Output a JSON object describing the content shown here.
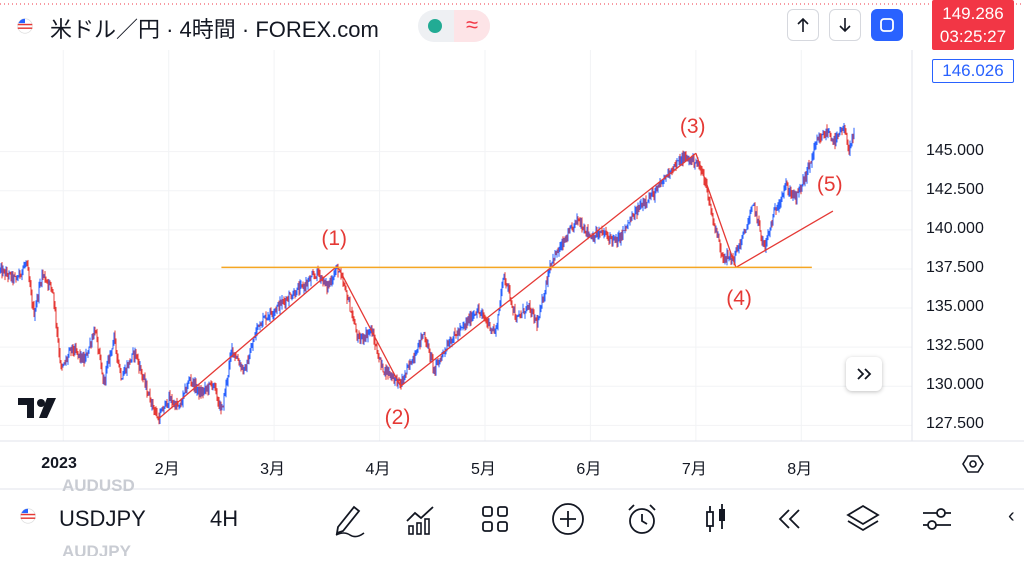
{
  "header": {
    "title": "米ドル／円 · 4時間 · FOREX.com",
    "status_icon": "green-dot",
    "wave_icon": "≈",
    "up_icon": "arrow-up",
    "down_icon": "arrow-down",
    "fullscreen_icon": "expand-square"
  },
  "price_tags": {
    "current_price": "149.286",
    "countdown": "03:25:27",
    "marker_price": "146.026"
  },
  "colors": {
    "bull": "#2962ff",
    "bear": "#e53935",
    "level_line": "#f5a623",
    "price_tag_red": "#f23645",
    "marker_blue": "#2962ff"
  },
  "chart_data": {
    "type": "line",
    "symbol": "USDJPY",
    "ylim": [
      126.5,
      151.5
    ],
    "y_ticks": [
      "145.000",
      "142.500",
      "140.000",
      "137.500",
      "135.000",
      "132.500",
      "130.000",
      "127.500"
    ],
    "y_tick_values": [
      145,
      142.5,
      140,
      137.5,
      135,
      132.5,
      130,
      127.5
    ],
    "x_ticks": [
      "2023",
      "2月",
      "3月",
      "4月",
      "5月",
      "6月",
      "7月",
      "8月"
    ],
    "x_tick_months": [
      0,
      1,
      2,
      3,
      4,
      5,
      6,
      7
    ],
    "xlim_months": [
      -0.6,
      8.05
    ],
    "price_path": [
      {
        "m": -0.6,
        "v": 137.4
      },
      {
        "m": -0.45,
        "v": 136.8
      },
      {
        "m": -0.35,
        "v": 137.9
      },
      {
        "m": -0.28,
        "v": 134.6
      },
      {
        "m": -0.2,
        "v": 137.2
      },
      {
        "m": -0.1,
        "v": 136.2
      },
      {
        "m": -0.02,
        "v": 131.0
      },
      {
        "m": 0.08,
        "v": 132.4
      },
      {
        "m": 0.2,
        "v": 131.6
      },
      {
        "m": 0.3,
        "v": 133.7
      },
      {
        "m": 0.38,
        "v": 130.2
      },
      {
        "m": 0.48,
        "v": 133.1
      },
      {
        "m": 0.55,
        "v": 130.6
      },
      {
        "m": 0.68,
        "v": 132.2
      },
      {
        "m": 0.8,
        "v": 129.6
      },
      {
        "m": 0.9,
        "v": 127.9
      },
      {
        "m": 1.0,
        "v": 129.2
      },
      {
        "m": 1.1,
        "v": 128.6
      },
      {
        "m": 1.2,
        "v": 130.5
      },
      {
        "m": 1.3,
        "v": 129.5
      },
      {
        "m": 1.42,
        "v": 130.2
      },
      {
        "m": 1.5,
        "v": 128.3
      },
      {
        "m": 1.6,
        "v": 132.4
      },
      {
        "m": 1.72,
        "v": 130.9
      },
      {
        "m": 1.85,
        "v": 134.0
      },
      {
        "m": 2.0,
        "v": 134.9
      },
      {
        "m": 2.15,
        "v": 135.8
      },
      {
        "m": 2.28,
        "v": 136.4
      },
      {
        "m": 2.42,
        "v": 137.3
      },
      {
        "m": 2.5,
        "v": 136.3
      },
      {
        "m": 2.6,
        "v": 137.6
      },
      {
        "m": 2.7,
        "v": 135.6
      },
      {
        "m": 2.8,
        "v": 132.9
      },
      {
        "m": 2.92,
        "v": 133.6
      },
      {
        "m": 3.02,
        "v": 131.2
      },
      {
        "m": 3.1,
        "v": 130.8
      },
      {
        "m": 3.2,
        "v": 130.1
      },
      {
        "m": 3.3,
        "v": 131.6
      },
      {
        "m": 3.42,
        "v": 133.4
      },
      {
        "m": 3.52,
        "v": 131.0
      },
      {
        "m": 3.65,
        "v": 132.8
      },
      {
        "m": 3.8,
        "v": 133.8
      },
      {
        "m": 3.92,
        "v": 134.9
      },
      {
        "m": 4.02,
        "v": 134.1
      },
      {
        "m": 4.1,
        "v": 133.4
      },
      {
        "m": 4.18,
        "v": 137.2
      },
      {
        "m": 4.3,
        "v": 134.2
      },
      {
        "m": 4.4,
        "v": 135.1
      },
      {
        "m": 4.5,
        "v": 134.0
      },
      {
        "m": 4.62,
        "v": 137.9
      },
      {
        "m": 4.75,
        "v": 139.2
      },
      {
        "m": 4.88,
        "v": 140.7
      },
      {
        "m": 5.0,
        "v": 139.6
      },
      {
        "m": 5.12,
        "v": 139.8
      },
      {
        "m": 5.25,
        "v": 139.2
      },
      {
        "m": 5.38,
        "v": 140.6
      },
      {
        "m": 5.5,
        "v": 141.8
      },
      {
        "m": 5.62,
        "v": 142.4
      },
      {
        "m": 5.75,
        "v": 143.8
      },
      {
        "m": 5.88,
        "v": 144.6
      },
      {
        "m": 6.0,
        "v": 144.4
      },
      {
        "m": 6.08,
        "v": 143.4
      },
      {
        "m": 6.15,
        "v": 141.0
      },
      {
        "m": 6.25,
        "v": 138.4
      },
      {
        "m": 6.35,
        "v": 138.1
      },
      {
        "m": 6.45,
        "v": 139.6
      },
      {
        "m": 6.55,
        "v": 141.6
      },
      {
        "m": 6.65,
        "v": 138.8
      },
      {
        "m": 6.75,
        "v": 141.2
      },
      {
        "m": 6.85,
        "v": 142.8
      },
      {
        "m": 6.95,
        "v": 142.0
      },
      {
        "m": 7.05,
        "v": 143.6
      },
      {
        "m": 7.15,
        "v": 145.6
      },
      {
        "m": 7.25,
        "v": 146.3
      },
      {
        "m": 7.32,
        "v": 145.6
      },
      {
        "m": 7.4,
        "v": 146.5
      },
      {
        "m": 7.45,
        "v": 145.2
      },
      {
        "m": 7.5,
        "v": 146.0
      }
    ],
    "wave_lines": [
      {
        "from": {
          "m": 0.9,
          "v": 127.9
        },
        "to": {
          "m": 2.6,
          "v": 137.7
        }
      },
      {
        "from": {
          "m": 2.6,
          "v": 137.7
        },
        "to": {
          "m": 3.2,
          "v": 130.0
        }
      },
      {
        "from": {
          "m": 3.2,
          "v": 130.0
        },
        "to": {
          "m": 6.0,
          "v": 144.9
        }
      },
      {
        "from": {
          "m": 6.0,
          "v": 144.9
        },
        "to": {
          "m": 6.38,
          "v": 137.6
        }
      },
      {
        "from": {
          "m": 6.38,
          "v": 137.6
        },
        "to": {
          "m": 7.3,
          "v": 141.2
        }
      }
    ],
    "horizontal_level": {
      "value": 137.6,
      "from_m": 1.5,
      "to_m": 7.1
    },
    "wave_labels": [
      {
        "text": "(1)",
        "m": 2.6,
        "v": 139.4
      },
      {
        "text": "(2)",
        "m": 3.2,
        "v": 128.0
      },
      {
        "text": "(3)",
        "m": 6.0,
        "v": 146.6
      },
      {
        "text": "(4)",
        "m": 6.44,
        "v": 135.6
      },
      {
        "text": "(5)",
        "m": 7.3,
        "v": 142.9
      }
    ]
  },
  "toolbar": {
    "symbol": "USDJPY",
    "interval": "4H",
    "ghost_above": "AUDUSD",
    "ghost_below": "AUDJPY",
    "icons": [
      "draw-pen-icon",
      "indicators-icon",
      "layout-grid-icon",
      "add-circle-icon",
      "alarm-icon",
      "candles-icon",
      "replay-icon",
      "layers-icon",
      "settings-sliders-icon"
    ]
  },
  "nav": {
    "scroll_right_icon": "double-chevron-right",
    "logo": "TV"
  }
}
